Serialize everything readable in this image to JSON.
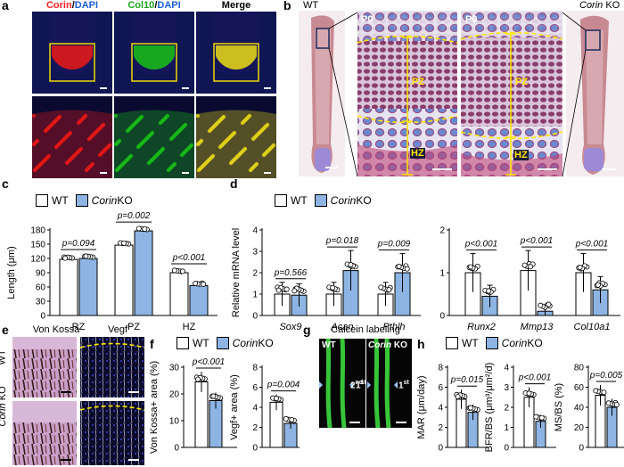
{
  "panels": {
    "a": {
      "label": "a",
      "titles": [
        {
          "parts": [
            {
              "text": "Corin",
              "color": "#ff2020"
            },
            {
              "text": "/",
              "color": "#000000"
            },
            {
              "text": "DAPI",
              "color": "#1f5fd8"
            }
          ]
        },
        {
          "parts": [
            {
              "text": "Col10",
              "color": "#1aa81a"
            },
            {
              "text": "/",
              "color": "#000000"
            },
            {
              "text": "DAPI",
              "color": "#1f5fd8"
            }
          ]
        },
        {
          "parts": [
            {
              "text": "Merge",
              "color": "#000000"
            }
          ]
        }
      ]
    },
    "b": {
      "label": "b",
      "wt": "WT",
      "ko_italic": "Corin",
      "ko_rest": " KO",
      "p0_left": "P0",
      "p0_right": "P0",
      "pz": "PZ",
      "hz": "HZ"
    },
    "c": {
      "label": "c",
      "legend_wt": "WT",
      "legend_ko_italic": "Corin",
      "legend_ko_rest": " KO",
      "ylabel": "Length (μm)",
      "yticks": [
        "0",
        "30",
        "60",
        "90",
        "120",
        "150",
        "180"
      ],
      "pvals": [
        "p=0.094",
        "p=0.002",
        "p<0.001"
      ]
    },
    "d": {
      "label": "d",
      "legend_wt": "WT",
      "legend_ko_italic": "Corin",
      "legend_ko_rest": " KO",
      "ylabel": "Relative mRNA level",
      "yticks_a": [
        "0",
        "1",
        "2",
        "3",
        "4"
      ],
      "yticks_b": [
        "0",
        "1",
        "2"
      ],
      "pvals": [
        "p=0.566",
        "p=0.018",
        "p=0.009",
        "p<0.001",
        "p<0.001",
        "p<0.001"
      ],
      "genes": [
        "Sox9",
        "Acan",
        "Pthlh",
        "Runx2",
        "Mmp13",
        "Col10a1"
      ]
    },
    "e": {
      "label": "e",
      "col1": "Von Kossa",
      "col2": "Vegf",
      "row1": "WT",
      "row2_italic": "Corin",
      "row2_rest": " KO"
    },
    "f": {
      "label": "f",
      "legend_wt": "WT",
      "legend_ko_italic": "Corin",
      "legend_ko_rest": " KO",
      "ylabel1": "Von Kossa+ area (%)",
      "ylabel2": "Vegf+ area (%)",
      "yticks1": [
        "0",
        "10",
        "20",
        "30"
      ],
      "yticks2": [
        "0",
        "2",
        "4",
        "6",
        "8"
      ],
      "pvals": [
        "p<0.001",
        "p=0.004"
      ]
    },
    "g": {
      "label": "g",
      "title": "Calcein labeling",
      "wt": "WT",
      "ko_italic": "Corin",
      "ko_rest": " KO",
      "second_base": "2",
      "second_sup": "nd",
      "first_base": "1",
      "first_sup": "st"
    },
    "h": {
      "label": "h",
      "legend_wt": "WT",
      "legend_ko_italic": "Corin",
      "legend_ko_rest": " KO",
      "ylabel1": "MAR (μm/day)",
      "ylabel2": "BFR/BS (μm³/μm²/d)",
      "ylabel3": "MS/BS (%)",
      "yticks1": [
        "0",
        "2",
        "4",
        "6",
        "8"
      ],
      "yticks2": [
        "0",
        "1",
        "2",
        "3",
        "4"
      ],
      "yticks3": [
        "0",
        "20",
        "40",
        "60",
        "80"
      ],
      "pvals": [
        "p=0.015",
        "p<0.001",
        "p=0.005"
      ]
    }
  },
  "colors": {
    "wt_fill": "#ffffff",
    "ko_fill": "#8db4e2",
    "corin_red": "#e01818",
    "col10_green": "#18b818",
    "merge_yellow": "#e0d018",
    "dapi_blue": "#1a2a8a",
    "calcein_green": "#3ddc3d",
    "guide_yellow": "#ffe600"
  },
  "chart_data": [
    {
      "type": "bar",
      "panel": "c",
      "categories": [
        "RZ",
        "PZ",
        "HZ"
      ],
      "ylabel": "Length (μm)",
      "ylim": [
        0,
        180
      ],
      "series": [
        {
          "name": "WT",
          "values": [
            118,
            148,
            90
          ]
        },
        {
          "name": "Corin KO",
          "values": [
            120,
            178,
            63
          ]
        }
      ],
      "pvalues": [
        "p=0.094",
        "p=0.002",
        "p<0.001"
      ]
    },
    {
      "type": "bar",
      "panel": "d",
      "categories": [
        "Sox9",
        "Acan",
        "Pthlh",
        "Runx2",
        "Mmp13",
        "Col10a1"
      ],
      "ylabel": "Relative mRNA level",
      "series": [
        {
          "name": "WT",
          "values": [
            1.0,
            1.0,
            1.0,
            1.0,
            1.05,
            1.0
          ]
        },
        {
          "name": "Corin KO",
          "values": [
            0.95,
            2.1,
            2.0,
            0.45,
            0.1,
            0.6
          ]
        }
      ],
      "ylims": [
        [
          0,
          4
        ],
        [
          0,
          4
        ],
        [
          0,
          4
        ],
        [
          0,
          2
        ],
        [
          0,
          2
        ],
        [
          0,
          2
        ]
      ],
      "pvalues": [
        "p=0.566",
        "p=0.018",
        "p=0.009",
        "p<0.001",
        "p<0.001",
        "p<0.001"
      ]
    },
    {
      "type": "bar",
      "panel": "f-left",
      "categories": [
        ""
      ],
      "ylabel": "Von Kossa+ area (%)",
      "ylim": [
        0,
        30
      ],
      "series": [
        {
          "name": "WT",
          "values": [
            24.5
          ]
        },
        {
          "name": "Corin KO",
          "values": [
            17.5
          ]
        }
      ],
      "pvalues": [
        "p<0.001"
      ]
    },
    {
      "type": "bar",
      "panel": "f-right",
      "categories": [
        ""
      ],
      "ylabel": "Vegf+ area (%)",
      "ylim": [
        0,
        8
      ],
      "series": [
        {
          "name": "WT",
          "values": [
            4.5
          ]
        },
        {
          "name": "Corin KO",
          "values": [
            2.4
          ]
        }
      ],
      "pvalues": [
        "p=0.004"
      ]
    },
    {
      "type": "bar",
      "panel": "h-1",
      "categories": [
        ""
      ],
      "ylabel": "MAR (μm/day)",
      "ylim": [
        0,
        8
      ],
      "series": [
        {
          "name": "WT",
          "values": [
            4.8
          ]
        },
        {
          "name": "Corin KO",
          "values": [
            3.5
          ]
        }
      ],
      "pvalues": [
        "p=0.015"
      ]
    },
    {
      "type": "bar",
      "panel": "h-2",
      "categories": [
        ""
      ],
      "ylabel": "BFR/BS (μm³/μm²/d)",
      "ylim": [
        0,
        4
      ],
      "series": [
        {
          "name": "WT",
          "values": [
            2.5
          ]
        },
        {
          "name": "Corin KO",
          "values": [
            1.3
          ]
        }
      ],
      "pvalues": [
        "p<0.001"
      ]
    },
    {
      "type": "bar",
      "panel": "h-3",
      "categories": [
        ""
      ],
      "ylabel": "MS/BS (%)",
      "ylim": [
        0,
        80
      ],
      "series": [
        {
          "name": "WT",
          "values": [
            52
          ]
        },
        {
          "name": "Corin KO",
          "values": [
            40
          ]
        }
      ],
      "pvalues": [
        "p=0.005"
      ]
    }
  ]
}
